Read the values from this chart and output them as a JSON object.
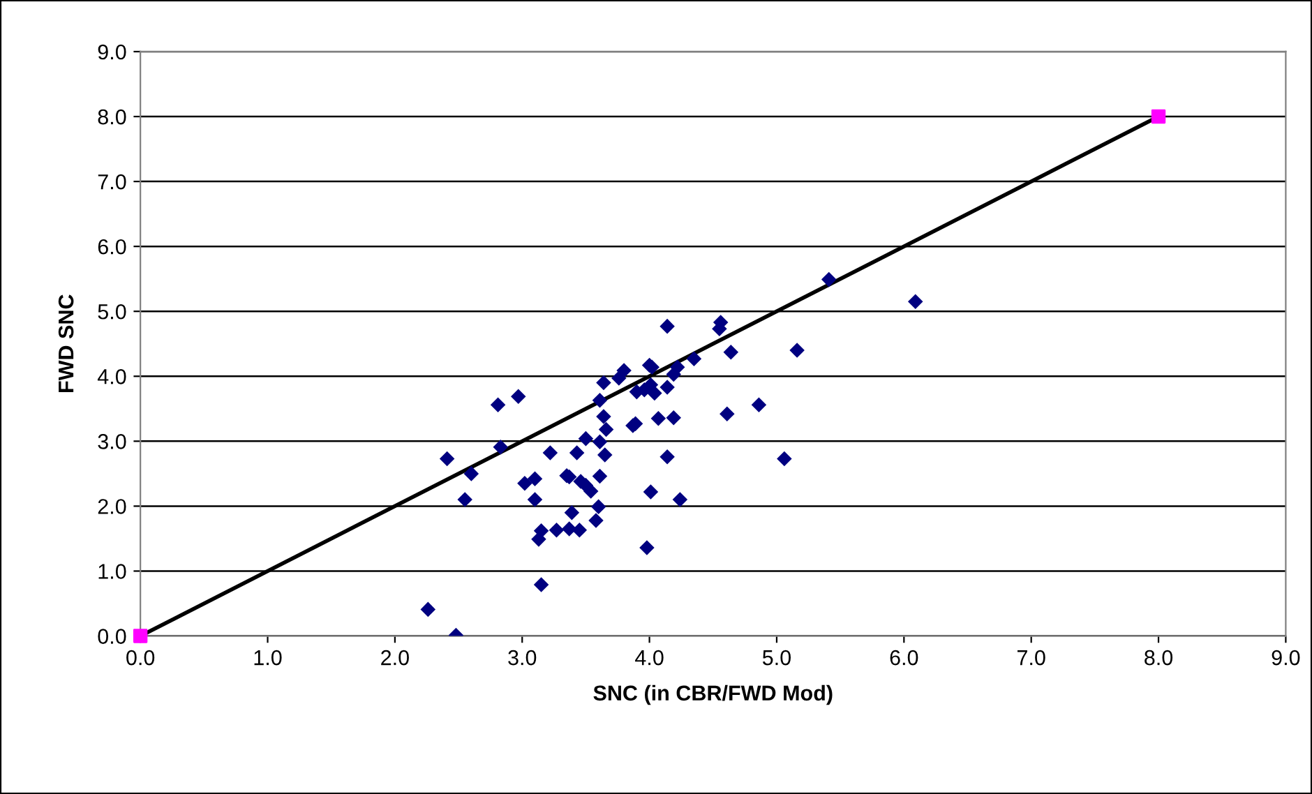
{
  "chart_data": {
    "type": "scatter",
    "xlabel": "SNC (in CBR/FWD Mod)",
    "ylabel": "FWD SNC",
    "xlim": [
      0,
      9
    ],
    "ylim": [
      0,
      9
    ],
    "xticks": [
      {
        "value": 0,
        "label": "0.0"
      },
      {
        "value": 1,
        "label": "1.0"
      },
      {
        "value": 2,
        "label": "2.0"
      },
      {
        "value": 3,
        "label": "3.0"
      },
      {
        "value": 4,
        "label": "4.0"
      },
      {
        "value": 5,
        "label": "5.0"
      },
      {
        "value": 6,
        "label": "6.0"
      },
      {
        "value": 7,
        "label": "7.0"
      },
      {
        "value": 8,
        "label": "8.0"
      },
      {
        "value": 9,
        "label": "9.0"
      }
    ],
    "yticks": [
      {
        "value": 0,
        "label": "0.0"
      },
      {
        "value": 1,
        "label": "1.0"
      },
      {
        "value": 2,
        "label": "2.0"
      },
      {
        "value": 3,
        "label": "3.0"
      },
      {
        "value": 4,
        "label": "4.0"
      },
      {
        "value": 5,
        "label": "5.0"
      },
      {
        "value": 6,
        "label": "6.0"
      },
      {
        "value": 7,
        "label": "7.0"
      },
      {
        "value": 8,
        "label": "8.0"
      },
      {
        "value": 9,
        "label": "9.0"
      }
    ],
    "grid": "y",
    "legend": false,
    "series": [
      {
        "type": "scatter",
        "marker": "diamond",
        "color": "#000080",
        "x": [
          2.26,
          2.48,
          2.41,
          2.55,
          2.6,
          2.81,
          2.83,
          2.97,
          3.02,
          3.1,
          3.1,
          3.13,
          3.15,
          3.15,
          3.22,
          3.27,
          3.35,
          3.37,
          3.39,
          3.37,
          3.43,
          3.45,
          3.46,
          3.5,
          3.5,
          3.54,
          3.58,
          3.6,
          3.61,
          3.61,
          3.61,
          3.64,
          3.64,
          3.65,
          3.66,
          3.76,
          3.8,
          3.9,
          3.87,
          3.89,
          3.96,
          4.0,
          4.01,
          4.02,
          4.04,
          4.01,
          3.98,
          4.07,
          4.14,
          4.14,
          4.14,
          4.19,
          4.19,
          4.22,
          4.24,
          4.35,
          4.55,
          4.56,
          4.64,
          4.61,
          4.86,
          5.06,
          5.16,
          5.41,
          6.09
        ],
        "values": [
          0.41,
          0.01,
          2.73,
          2.1,
          2.5,
          3.56,
          2.91,
          3.69,
          2.35,
          2.42,
          2.1,
          1.49,
          1.62,
          0.79,
          2.82,
          1.63,
          2.47,
          2.45,
          1.9,
          1.65,
          2.82,
          1.63,
          2.38,
          3.04,
          2.32,
          2.23,
          1.78,
          1.99,
          2.99,
          2.46,
          3.63,
          3.9,
          3.38,
          2.79,
          3.18,
          3.97,
          4.09,
          3.76,
          3.24,
          3.27,
          3.79,
          4.17,
          3.87,
          4.14,
          3.74,
          2.22,
          1.36,
          3.35,
          4.77,
          3.83,
          2.76,
          3.36,
          4.03,
          4.14,
          2.1,
          4.27,
          4.73,
          4.83,
          4.37,
          3.42,
          3.56,
          2.73,
          4.4,
          5.49,
          5.15
        ]
      },
      {
        "type": "line",
        "marker": "square",
        "line_style": "solid",
        "color": "#000000",
        "colors": [
          "#ff00ff",
          "#ff00ff"
        ],
        "x": [
          0,
          8
        ],
        "values": [
          0,
          8
        ]
      }
    ]
  }
}
